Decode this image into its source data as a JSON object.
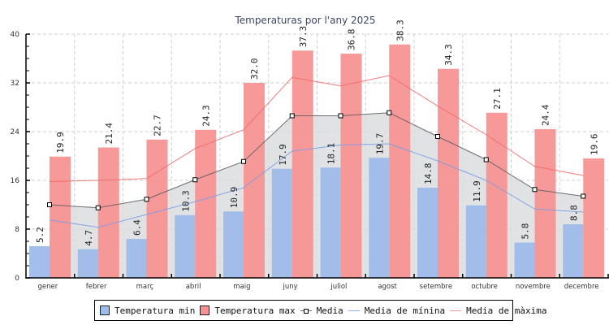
{
  "chart_data": {
    "type": "bar",
    "title": "Temperaturas por l'any 2025",
    "xlabel": "",
    "ylabel": "",
    "ylim": [
      0,
      40
    ],
    "yticks": [
      0,
      8,
      16,
      24,
      32,
      40
    ],
    "grid": true,
    "legend_position": "bottom",
    "categories": [
      "gener",
      "febrer",
      "març",
      "abril",
      "maig",
      "juny",
      "juliol",
      "agost",
      "setembre",
      "octubre",
      "novembre",
      "decembre"
    ],
    "series": [
      {
        "name": "Temperatura min",
        "kind": "bar",
        "color": "#9fbbea",
        "values": [
          5.2,
          4.7,
          6.4,
          10.3,
          10.9,
          17.9,
          18.1,
          19.7,
          14.8,
          11.9,
          5.8,
          8.8
        ]
      },
      {
        "name": "Temperatura max",
        "kind": "bar",
        "color": "#f79293",
        "values": [
          19.9,
          21.4,
          22.7,
          24.3,
          32.0,
          37.3,
          36.8,
          38.3,
          34.3,
          27.1,
          24.4,
          19.6
        ]
      },
      {
        "name": "Media",
        "kind": "line-area",
        "color": "#666666",
        "values": [
          12.0,
          11.5,
          12.9,
          16.1,
          19.1,
          26.6,
          26.6,
          27.1,
          23.2,
          19.4,
          14.5,
          13.4
        ]
      },
      {
        "name": "Media de mínina",
        "kind": "line",
        "color": "#7a9fe6",
        "values": [
          9.5,
          8.3,
          10.4,
          12.5,
          14.8,
          20.8,
          21.8,
          22.0,
          19.2,
          16.0,
          11.3,
          10.8
        ]
      },
      {
        "name": "Media de màxima",
        "kind": "line",
        "color": "#ee6b6b",
        "values": [
          15.8,
          16.0,
          16.3,
          21.2,
          24.3,
          32.9,
          31.5,
          33.2,
          28.2,
          23.5,
          18.3,
          16.8
        ]
      }
    ]
  },
  "legend": {
    "items": [
      {
        "label": "Temperatura min",
        "type": "box",
        "color": "#9fbbea"
      },
      {
        "label": "Temperatura max",
        "type": "box",
        "color": "#f79293"
      },
      {
        "label": "Media",
        "type": "line-marker",
        "color": "#666666"
      },
      {
        "label": "Media de mínina",
        "type": "line",
        "color": "#7a9fe6"
      },
      {
        "label": "Media de màxima",
        "type": "line",
        "color": "#ee6b6b"
      }
    ]
  }
}
